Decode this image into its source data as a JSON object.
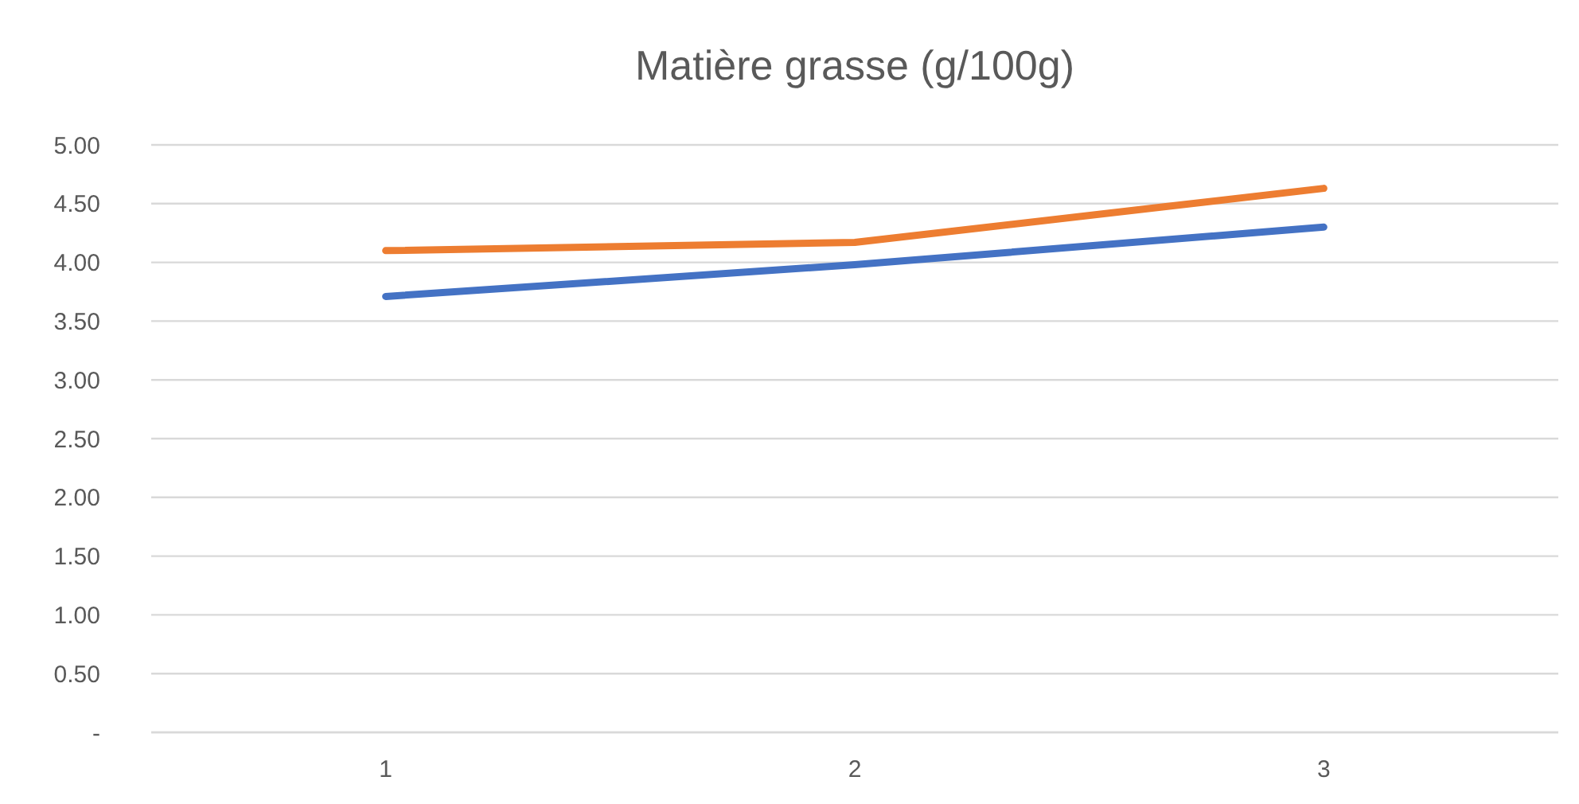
{
  "chart_data": {
    "type": "line",
    "title": "Matière grasse (g/100g)",
    "categories": [
      "1",
      "2",
      "3"
    ],
    "series": [
      {
        "color": "#4472c4",
        "values": [
          3.71,
          3.98,
          4.3
        ]
      },
      {
        "color": "#ed7d31",
        "values": [
          4.1,
          4.17,
          4.63
        ]
      }
    ],
    "ylim": [
      0,
      5
    ],
    "yticks": [
      {
        "value": 0,
        "label": "-"
      },
      {
        "value": 0.5,
        "label": "0.50"
      },
      {
        "value": 1,
        "label": "1.00"
      },
      {
        "value": 1.5,
        "label": "1.50"
      },
      {
        "value": 2,
        "label": "2.00"
      },
      {
        "value": 2.5,
        "label": "2.50"
      },
      {
        "value": 3,
        "label": "3.00"
      },
      {
        "value": 3.5,
        "label": "3.50"
      },
      {
        "value": 4,
        "label": "4.00"
      },
      {
        "value": 4.5,
        "label": "4.50"
      },
      {
        "value": 5,
        "label": "5.00"
      }
    ],
    "grid": "y",
    "marker": "none",
    "line_style": "solid"
  }
}
